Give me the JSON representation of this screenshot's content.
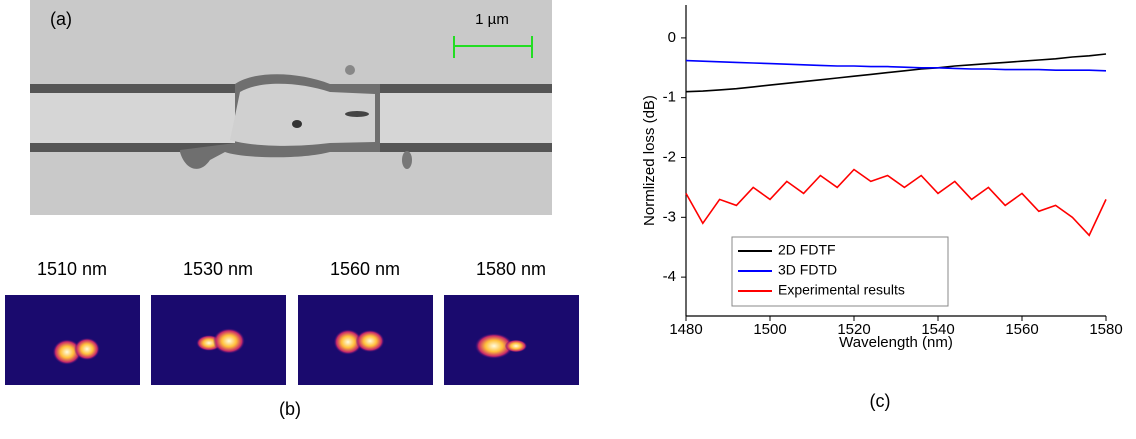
{
  "panels": {
    "a": {
      "label": "(a)",
      "scale_bar": "1 µm"
    },
    "b": {
      "label": "(b)",
      "wavelengths": [
        "1510 nm",
        "1530 nm",
        "1560 nm",
        "1580 nm"
      ]
    },
    "c": {
      "label": "(c)"
    }
  },
  "chart_data": {
    "type": "line",
    "x_label": "Wavelength (nm)",
    "y_label": "Normlized loss (dB)",
    "x": [
      1480,
      1484,
      1488,
      1492,
      1496,
      1500,
      1504,
      1508,
      1512,
      1516,
      1520,
      1524,
      1528,
      1532,
      1536,
      1540,
      1544,
      1548,
      1552,
      1556,
      1560,
      1564,
      1568,
      1572,
      1576,
      1580
    ],
    "series": [
      {
        "name": "2D FDTF",
        "color": "#000000",
        "values": [
          -0.9,
          -0.89,
          -0.87,
          -0.85,
          -0.82,
          -0.79,
          -0.76,
          -0.73,
          -0.7,
          -0.67,
          -0.64,
          -0.61,
          -0.58,
          -0.55,
          -0.52,
          -0.5,
          -0.47,
          -0.45,
          -0.43,
          -0.41,
          -0.39,
          -0.37,
          -0.35,
          -0.32,
          -0.3,
          -0.27
        ]
      },
      {
        "name": "3D FDTD",
        "color": "#0000ff",
        "values": [
          -0.38,
          -0.39,
          -0.4,
          -0.41,
          -0.42,
          -0.43,
          -0.44,
          -0.45,
          -0.46,
          -0.47,
          -0.47,
          -0.48,
          -0.48,
          -0.49,
          -0.5,
          -0.5,
          -0.51,
          -0.52,
          -0.52,
          -0.53,
          -0.53,
          -0.53,
          -0.54,
          -0.54,
          -0.54,
          -0.55
        ]
      },
      {
        "name": "Experimental results",
        "color": "#ff0000",
        "values": [
          -2.6,
          -3.1,
          -2.7,
          -2.8,
          -2.5,
          -2.7,
          -2.4,
          -2.6,
          -2.3,
          -2.5,
          -2.2,
          -2.4,
          -2.3,
          -2.5,
          -2.3,
          -2.6,
          -2.4,
          -2.7,
          -2.5,
          -2.8,
          -2.6,
          -2.9,
          -2.8,
          -3.0,
          -3.3,
          -2.7
        ]
      }
    ],
    "xlim": [
      1480,
      1580
    ],
    "xticks": [
      1480,
      1500,
      1520,
      1540,
      1560,
      1580
    ],
    "ylim": [
      -4.65,
      0.55
    ],
    "yticks": [
      0,
      -1,
      -2,
      -3,
      -4
    ],
    "legend": "lower-left"
  }
}
